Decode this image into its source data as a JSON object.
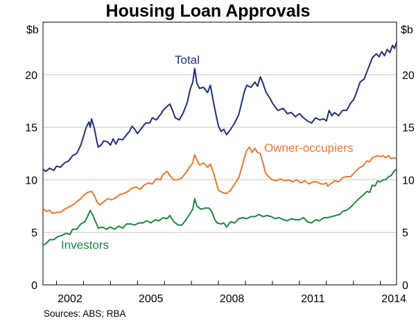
{
  "chart_data": {
    "type": "line",
    "title": "Housing Loan Approvals",
    "unit_left": "$b",
    "unit_right": "$b",
    "ylim": [
      0,
      25
    ],
    "yticks": [
      0,
      5,
      10,
      15,
      20
    ],
    "xlim": [
      2001.5,
      2014.6
    ],
    "xticks": [
      2002,
      2005,
      2008,
      2011,
      2014
    ],
    "grid": true,
    "source": "Sources:   ABS; RBA",
    "series": [
      {
        "name": "Total",
        "color": "#1f2e7a",
        "points": [
          [
            2001.5,
            11.0
          ],
          [
            2001.6,
            10.8
          ],
          [
            2001.75,
            11.1
          ],
          [
            2001.9,
            10.9
          ],
          [
            2002.0,
            11.3
          ],
          [
            2002.15,
            11.2
          ],
          [
            2002.3,
            11.6
          ],
          [
            2002.45,
            11.8
          ],
          [
            2002.6,
            12.3
          ],
          [
            2002.75,
            12.5
          ],
          [
            2002.9,
            13.3
          ],
          [
            2003.0,
            14.1
          ],
          [
            2003.1,
            15.0
          ],
          [
            2003.2,
            15.5
          ],
          [
            2003.25,
            15.0
          ],
          [
            2003.3,
            15.8
          ],
          [
            2003.4,
            14.9
          ],
          [
            2003.5,
            13.6
          ],
          [
            2003.55,
            13.1
          ],
          [
            2003.65,
            13.3
          ],
          [
            2003.75,
            13.7
          ],
          [
            2003.9,
            13.6
          ],
          [
            2004.0,
            13.3
          ],
          [
            2004.1,
            13.9
          ],
          [
            2004.2,
            13.4
          ],
          [
            2004.3,
            13.9
          ],
          [
            2004.45,
            13.8
          ],
          [
            2004.6,
            14.3
          ],
          [
            2004.7,
            14.6
          ],
          [
            2004.8,
            15.1
          ],
          [
            2004.9,
            14.8
          ],
          [
            2005.0,
            14.4
          ],
          [
            2005.15,
            14.9
          ],
          [
            2005.3,
            15.4
          ],
          [
            2005.45,
            15.4
          ],
          [
            2005.55,
            15.9
          ],
          [
            2005.7,
            15.7
          ],
          [
            2005.85,
            16.2
          ],
          [
            2005.95,
            16.6
          ],
          [
            2006.1,
            17.0
          ],
          [
            2006.2,
            17.2
          ],
          [
            2006.3,
            16.6
          ],
          [
            2006.4,
            15.9
          ],
          [
            2006.55,
            15.7
          ],
          [
            2006.7,
            16.4
          ],
          [
            2006.85,
            17.4
          ],
          [
            2006.95,
            18.6
          ],
          [
            2007.05,
            19.3
          ],
          [
            2007.12,
            20.6
          ],
          [
            2007.2,
            19.2
          ],
          [
            2007.3,
            18.7
          ],
          [
            2007.45,
            18.8
          ],
          [
            2007.6,
            18.3
          ],
          [
            2007.7,
            19.0
          ],
          [
            2007.8,
            17.6
          ],
          [
            2007.9,
            16.3
          ],
          [
            2008.0,
            15.1
          ],
          [
            2008.1,
            14.6
          ],
          [
            2008.2,
            14.8
          ],
          [
            2008.3,
            14.3
          ],
          [
            2008.45,
            14.8
          ],
          [
            2008.6,
            15.4
          ],
          [
            2008.75,
            16.2
          ],
          [
            2008.85,
            17.2
          ],
          [
            2008.95,
            18.3
          ],
          [
            2009.05,
            19.0
          ],
          [
            2009.2,
            18.8
          ],
          [
            2009.35,
            19.3
          ],
          [
            2009.45,
            18.9
          ],
          [
            2009.55,
            19.8
          ],
          [
            2009.65,
            19.2
          ],
          [
            2009.75,
            18.4
          ],
          [
            2009.9,
            17.8
          ],
          [
            2010.0,
            17.3
          ],
          [
            2010.2,
            16.6
          ],
          [
            2010.4,
            16.8
          ],
          [
            2010.55,
            16.3
          ],
          [
            2010.7,
            16.4
          ],
          [
            2010.85,
            16.0
          ],
          [
            2011.0,
            16.3
          ],
          [
            2011.15,
            15.9
          ],
          [
            2011.3,
            15.6
          ],
          [
            2011.45,
            15.4
          ],
          [
            2011.6,
            15.9
          ],
          [
            2011.75,
            15.7
          ],
          [
            2011.9,
            15.8
          ],
          [
            2012.0,
            15.6
          ],
          [
            2012.1,
            16.6
          ],
          [
            2012.2,
            16.1
          ],
          [
            2012.3,
            16.4
          ],
          [
            2012.45,
            16.1
          ],
          [
            2012.6,
            16.6
          ],
          [
            2012.75,
            16.6
          ],
          [
            2012.9,
            17.3
          ],
          [
            2013.0,
            17.6
          ],
          [
            2013.1,
            18.2
          ],
          [
            2013.25,
            19.3
          ],
          [
            2013.4,
            19.6
          ],
          [
            2013.55,
            20.6
          ],
          [
            2013.7,
            21.6
          ],
          [
            2013.85,
            22.0
          ],
          [
            2013.95,
            21.7
          ],
          [
            2014.05,
            22.2
          ],
          [
            2014.15,
            21.8
          ],
          [
            2014.25,
            22.4
          ],
          [
            2014.35,
            22.1
          ],
          [
            2014.45,
            22.8
          ],
          [
            2014.52,
            22.5
          ],
          [
            2014.6,
            23.1
          ]
        ]
      },
      {
        "name": "Owner-occupiers",
        "color": "#e8772e",
        "points": [
          [
            2001.5,
            7.3
          ],
          [
            2001.6,
            7.0
          ],
          [
            2001.75,
            7.1
          ],
          [
            2001.85,
            6.8
          ],
          [
            2002.0,
            6.9
          ],
          [
            2002.15,
            6.9
          ],
          [
            2002.3,
            7.2
          ],
          [
            2002.45,
            7.4
          ],
          [
            2002.6,
            7.6
          ],
          [
            2002.75,
            7.9
          ],
          [
            2002.9,
            8.2
          ],
          [
            2003.0,
            8.5
          ],
          [
            2003.15,
            8.8
          ],
          [
            2003.3,
            8.9
          ],
          [
            2003.4,
            8.5
          ],
          [
            2003.5,
            7.9
          ],
          [
            2003.6,
            7.6
          ],
          [
            2003.75,
            7.9
          ],
          [
            2003.9,
            8.2
          ],
          [
            2004.05,
            8.1
          ],
          [
            2004.2,
            8.3
          ],
          [
            2004.35,
            8.6
          ],
          [
            2004.5,
            8.7
          ],
          [
            2004.65,
            8.9
          ],
          [
            2004.8,
            9.2
          ],
          [
            2004.95,
            9.3
          ],
          [
            2005.1,
            9.1
          ],
          [
            2005.25,
            9.5
          ],
          [
            2005.4,
            9.7
          ],
          [
            2005.55,
            9.6
          ],
          [
            2005.7,
            10.1
          ],
          [
            2005.85,
            10.0
          ],
          [
            2005.95,
            10.5
          ],
          [
            2006.1,
            10.8
          ],
          [
            2006.2,
            10.4
          ],
          [
            2006.35,
            10.0
          ],
          [
            2006.5,
            10.0
          ],
          [
            2006.65,
            10.2
          ],
          [
            2006.8,
            10.7
          ],
          [
            2006.95,
            11.3
          ],
          [
            2007.05,
            11.6
          ],
          [
            2007.12,
            12.4
          ],
          [
            2007.2,
            11.9
          ],
          [
            2007.3,
            11.4
          ],
          [
            2007.45,
            11.6
          ],
          [
            2007.6,
            11.2
          ],
          [
            2007.7,
            11.5
          ],
          [
            2007.8,
            10.8
          ],
          [
            2007.9,
            9.9
          ],
          [
            2008.0,
            9.0
          ],
          [
            2008.15,
            8.8
          ],
          [
            2008.3,
            8.7
          ],
          [
            2008.45,
            9.0
          ],
          [
            2008.6,
            9.6
          ],
          [
            2008.75,
            10.2
          ],
          [
            2008.85,
            11.0
          ],
          [
            2008.95,
            12.0
          ],
          [
            2009.05,
            12.8
          ],
          [
            2009.15,
            13.1
          ],
          [
            2009.25,
            12.6
          ],
          [
            2009.35,
            13.0
          ],
          [
            2009.45,
            12.6
          ],
          [
            2009.55,
            12.5
          ],
          [
            2009.65,
            11.6
          ],
          [
            2009.75,
            10.6
          ],
          [
            2009.9,
            10.2
          ],
          [
            2010.0,
            10.0
          ],
          [
            2010.15,
            9.9
          ],
          [
            2010.3,
            10.1
          ],
          [
            2010.45,
            9.9
          ],
          [
            2010.6,
            10.0
          ],
          [
            2010.75,
            9.8
          ],
          [
            2010.9,
            10.0
          ],
          [
            2011.05,
            9.7
          ],
          [
            2011.2,
            9.9
          ],
          [
            2011.35,
            9.6
          ],
          [
            2011.5,
            9.8
          ],
          [
            2011.65,
            9.8
          ],
          [
            2011.8,
            9.6
          ],
          [
            2011.9,
            9.6
          ],
          [
            2012.0,
            9.7
          ],
          [
            2012.05,
            9.4
          ],
          [
            2012.15,
            9.6
          ],
          [
            2012.3,
            9.9
          ],
          [
            2012.45,
            9.8
          ],
          [
            2012.6,
            10.2
          ],
          [
            2012.75,
            10.3
          ],
          [
            2012.9,
            10.3
          ],
          [
            2013.05,
            10.7
          ],
          [
            2013.2,
            11.1
          ],
          [
            2013.35,
            11.3
          ],
          [
            2013.5,
            11.8
          ],
          [
            2013.6,
            11.7
          ],
          [
            2013.7,
            12.1
          ],
          [
            2013.8,
            12.2
          ],
          [
            2013.9,
            12.3
          ],
          [
            2014.0,
            12.2
          ],
          [
            2014.1,
            12.3
          ],
          [
            2014.2,
            12.1
          ],
          [
            2014.3,
            12.3
          ],
          [
            2014.4,
            12.0
          ],
          [
            2014.5,
            12.1
          ],
          [
            2014.58,
            12.0
          ]
        ]
      },
      {
        "name": "Investors",
        "color": "#1f8540",
        "points": [
          [
            2001.5,
            3.8
          ],
          [
            2001.6,
            3.9
          ],
          [
            2001.75,
            4.3
          ],
          [
            2001.9,
            4.3
          ],
          [
            2002.05,
            4.6
          ],
          [
            2002.2,
            4.7
          ],
          [
            2002.35,
            4.9
          ],
          [
            2002.5,
            4.8
          ],
          [
            2002.6,
            5.3
          ],
          [
            2002.75,
            5.3
          ],
          [
            2002.9,
            5.8
          ],
          [
            2003.05,
            6.0
          ],
          [
            2003.15,
            6.5
          ],
          [
            2003.25,
            7.1
          ],
          [
            2003.35,
            6.6
          ],
          [
            2003.45,
            6.0
          ],
          [
            2003.55,
            5.4
          ],
          [
            2003.7,
            5.5
          ],
          [
            2003.85,
            5.3
          ],
          [
            2004.0,
            5.5
          ],
          [
            2004.15,
            5.3
          ],
          [
            2004.3,
            5.6
          ],
          [
            2004.45,
            5.4
          ],
          [
            2004.6,
            5.8
          ],
          [
            2004.75,
            5.8
          ],
          [
            2004.9,
            5.7
          ],
          [
            2005.05,
            5.9
          ],
          [
            2005.2,
            5.9
          ],
          [
            2005.35,
            6.1
          ],
          [
            2005.5,
            5.9
          ],
          [
            2005.65,
            6.2
          ],
          [
            2005.8,
            6.1
          ],
          [
            2005.95,
            6.4
          ],
          [
            2006.1,
            6.3
          ],
          [
            2006.2,
            6.6
          ],
          [
            2006.35,
            6.0
          ],
          [
            2006.5,
            5.7
          ],
          [
            2006.65,
            5.7
          ],
          [
            2006.8,
            6.2
          ],
          [
            2006.95,
            6.8
          ],
          [
            2007.05,
            7.2
          ],
          [
            2007.12,
            8.2
          ],
          [
            2007.2,
            7.5
          ],
          [
            2007.35,
            7.2
          ],
          [
            2007.5,
            7.3
          ],
          [
            2007.65,
            7.3
          ],
          [
            2007.75,
            7.0
          ],
          [
            2007.85,
            6.3
          ],
          [
            2007.95,
            5.9
          ],
          [
            2008.1,
            5.8
          ],
          [
            2008.2,
            5.9
          ],
          [
            2008.3,
            5.5
          ],
          [
            2008.45,
            6.0
          ],
          [
            2008.6,
            5.9
          ],
          [
            2008.75,
            6.3
          ],
          [
            2008.9,
            6.4
          ],
          [
            2009.05,
            6.3
          ],
          [
            2009.2,
            6.5
          ],
          [
            2009.35,
            6.5
          ],
          [
            2009.5,
            6.7
          ],
          [
            2009.65,
            6.5
          ],
          [
            2009.8,
            6.6
          ],
          [
            2009.95,
            6.5
          ],
          [
            2010.1,
            6.3
          ],
          [
            2010.25,
            6.4
          ],
          [
            2010.4,
            6.2
          ],
          [
            2010.55,
            6.1
          ],
          [
            2010.7,
            6.3
          ],
          [
            2010.85,
            6.2
          ],
          [
            2011.0,
            6.2
          ],
          [
            2011.15,
            6.4
          ],
          [
            2011.3,
            6.0
          ],
          [
            2011.45,
            5.9
          ],
          [
            2011.6,
            6.2
          ],
          [
            2011.75,
            6.1
          ],
          [
            2011.9,
            6.4
          ],
          [
            2012.05,
            6.4
          ],
          [
            2012.2,
            6.5
          ],
          [
            2012.35,
            6.6
          ],
          [
            2012.5,
            6.7
          ],
          [
            2012.6,
            7.0
          ],
          [
            2012.75,
            7.1
          ],
          [
            2012.9,
            7.4
          ],
          [
            2013.05,
            7.8
          ],
          [
            2013.2,
            8.2
          ],
          [
            2013.35,
            8.5
          ],
          [
            2013.5,
            8.9
          ],
          [
            2013.6,
            8.8
          ],
          [
            2013.7,
            9.5
          ],
          [
            2013.8,
            9.4
          ],
          [
            2013.9,
            9.9
          ],
          [
            2014.0,
            9.8
          ],
          [
            2014.1,
            10.0
          ],
          [
            2014.2,
            10.0
          ],
          [
            2014.3,
            10.3
          ],
          [
            2014.4,
            10.4
          ],
          [
            2014.5,
            10.8
          ],
          [
            2014.58,
            11.0
          ]
        ]
      }
    ]
  }
}
